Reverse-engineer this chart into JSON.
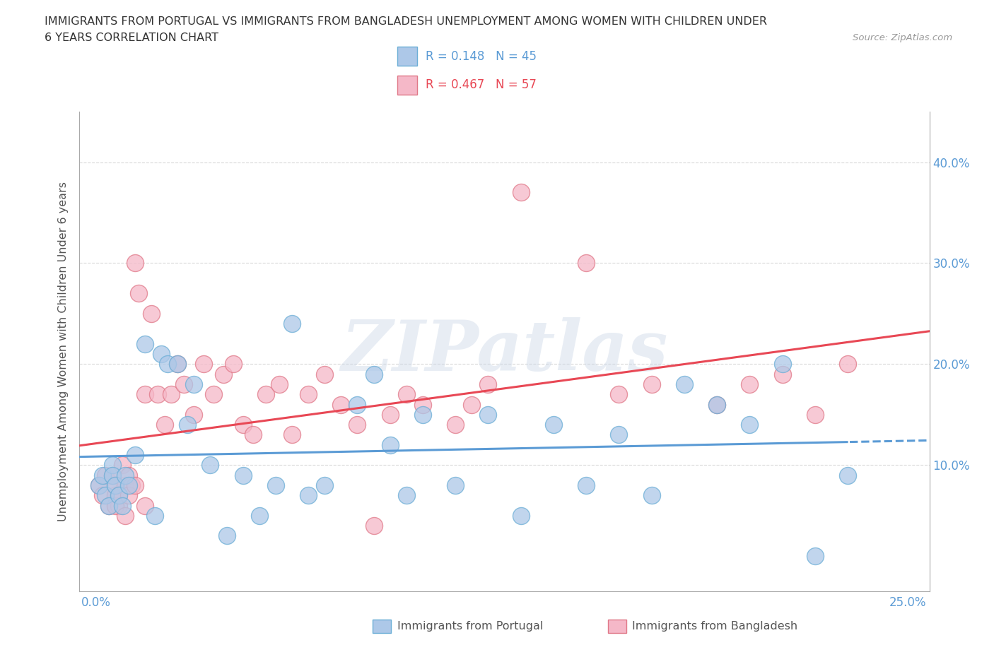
{
  "title_line1": "IMMIGRANTS FROM PORTUGAL VS IMMIGRANTS FROM BANGLADESH UNEMPLOYMENT AMONG WOMEN WITH CHILDREN UNDER",
  "title_line2": "6 YEARS CORRELATION CHART",
  "source_text": "Source: ZipAtlas.com",
  "ylabel": "Unemployment Among Women with Children Under 6 years",
  "xlim": [
    -0.005,
    0.255
  ],
  "ylim": [
    -0.025,
    0.45
  ],
  "ytick_vals": [
    0.0,
    0.1,
    0.2,
    0.3,
    0.4
  ],
  "ytick_labels": [
    "",
    "10.0%",
    "20.0%",
    "30.0%",
    "40.0%"
  ],
  "r_portugal": 0.148,
  "n_portugal": 45,
  "r_bangladesh": 0.467,
  "n_bangladesh": 57,
  "color_portugal_fill": "#adc8e8",
  "color_portugal_edge": "#6baed6",
  "color_bangladesh_fill": "#f5b8c8",
  "color_bangladesh_edge": "#e07888",
  "line_color_portugal": "#5b9bd5",
  "line_color_bangladesh": "#e84855",
  "marker_size": 300,
  "portugal_x": [
    0.001,
    0.002,
    0.003,
    0.004,
    0.005,
    0.005,
    0.006,
    0.007,
    0.008,
    0.009,
    0.01,
    0.012,
    0.015,
    0.018,
    0.02,
    0.022,
    0.025,
    0.028,
    0.03,
    0.035,
    0.04,
    0.045,
    0.05,
    0.055,
    0.06,
    0.065,
    0.07,
    0.08,
    0.085,
    0.09,
    0.095,
    0.1,
    0.11,
    0.12,
    0.13,
    0.14,
    0.15,
    0.16,
    0.17,
    0.18,
    0.19,
    0.2,
    0.21,
    0.22,
    0.23
  ],
  "portugal_y": [
    0.08,
    0.09,
    0.07,
    0.06,
    0.1,
    0.09,
    0.08,
    0.07,
    0.06,
    0.09,
    0.08,
    0.11,
    0.22,
    0.05,
    0.21,
    0.2,
    0.2,
    0.14,
    0.18,
    0.1,
    0.03,
    0.09,
    0.05,
    0.08,
    0.24,
    0.07,
    0.08,
    0.16,
    0.19,
    0.12,
    0.07,
    0.15,
    0.08,
    0.15,
    0.05,
    0.14,
    0.08,
    0.13,
    0.07,
    0.18,
    0.16,
    0.14,
    0.2,
    0.01,
    0.09
  ],
  "bangladesh_x": [
    0.001,
    0.002,
    0.003,
    0.004,
    0.005,
    0.006,
    0.006,
    0.007,
    0.008,
    0.009,
    0.01,
    0.011,
    0.012,
    0.013,
    0.015,
    0.017,
    0.019,
    0.021,
    0.023,
    0.025,
    0.027,
    0.03,
    0.033,
    0.036,
    0.039,
    0.042,
    0.045,
    0.048,
    0.052,
    0.056,
    0.06,
    0.065,
    0.07,
    0.075,
    0.08,
    0.085,
    0.09,
    0.095,
    0.1,
    0.11,
    0.115,
    0.12,
    0.13,
    0.15,
    0.16,
    0.17,
    0.19,
    0.2,
    0.21,
    0.22,
    0.23,
    0.006,
    0.007,
    0.009,
    0.01,
    0.012,
    0.015
  ],
  "bangladesh_y": [
    0.08,
    0.07,
    0.09,
    0.06,
    0.09,
    0.07,
    0.08,
    0.06,
    0.1,
    0.08,
    0.09,
    0.08,
    0.3,
    0.27,
    0.17,
    0.25,
    0.17,
    0.14,
    0.17,
    0.2,
    0.18,
    0.15,
    0.2,
    0.17,
    0.19,
    0.2,
    0.14,
    0.13,
    0.17,
    0.18,
    0.13,
    0.17,
    0.19,
    0.16,
    0.14,
    0.04,
    0.15,
    0.17,
    0.16,
    0.14,
    0.16,
    0.18,
    0.37,
    0.3,
    0.17,
    0.18,
    0.16,
    0.18,
    0.19,
    0.15,
    0.2,
    0.06,
    0.07,
    0.05,
    0.07,
    0.08,
    0.06
  ],
  "background_color": "#ffffff",
  "grid_color": "#d5d5d5",
  "watermark": "ZIPatlas"
}
